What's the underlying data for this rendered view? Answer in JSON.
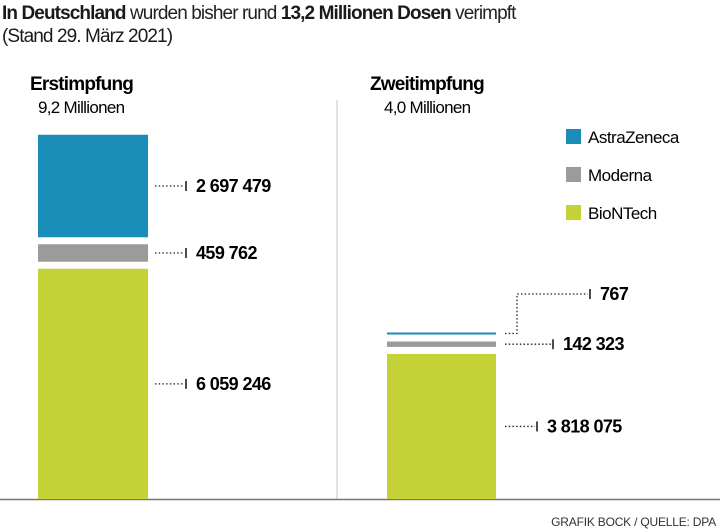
{
  "title": {
    "part1_bold": "In Deutschland",
    "part2": " wurden bisher rund ",
    "part3_bold": "13,2 Millionen Dosen",
    "part4": " verimpft",
    "line2": "(Stand 29. März 2021)"
  },
  "source": "GRAFIK BOCK / QUELLE: DPA",
  "colors": {
    "AstraZeneca": "#1a8cb8",
    "Moderna": "#9b9b9b",
    "BioNTech": "#c4d237"
  },
  "chart_data": [
    {
      "type": "bar",
      "stacked": true,
      "title": "Erstimpfung",
      "subtitle": "9,2 Millionen",
      "series": [
        {
          "name": "BioNTech",
          "value": 6059246,
          "label": "6 059 246"
        },
        {
          "name": "Moderna",
          "value": 459762,
          "label": "459 762"
        },
        {
          "name": "AstraZeneca",
          "value": 2697479,
          "label": "2 697 479"
        }
      ]
    },
    {
      "type": "bar",
      "stacked": true,
      "title": "Zweitimpfung",
      "subtitle": "4,0 Millionen",
      "series": [
        {
          "name": "BioNTech",
          "value": 3818075,
          "label": "3 818 075"
        },
        {
          "name": "Moderna",
          "value": 142323,
          "label": "142 323"
        },
        {
          "name": "AstraZeneca",
          "value": 767,
          "label": "767"
        }
      ]
    }
  ],
  "legend": [
    "AstraZeneca",
    "Moderna",
    "BioNTech"
  ]
}
